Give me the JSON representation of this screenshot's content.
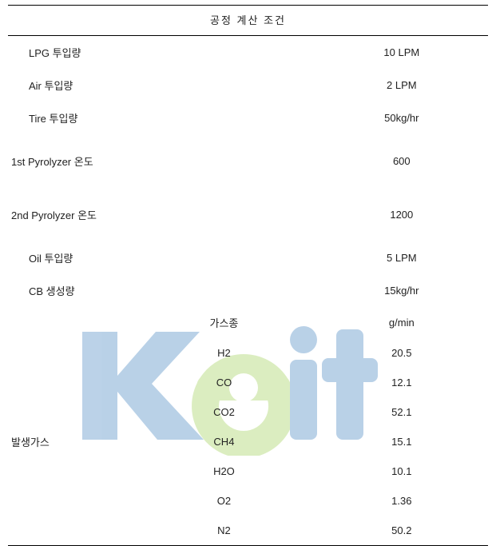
{
  "title": "공정   계산 조건",
  "params": [
    {
      "label": "LPG 투입량",
      "value": "10 LPM",
      "lpad": "p-label"
    },
    {
      "label": "Air 투입량",
      "value": "2 LPM",
      "lpad": "p-label"
    },
    {
      "label": "Tire 투입량",
      "value": "50kg/hr",
      "lpad": "p-label"
    },
    {
      "label": "1st Pyrolyzer   온도",
      "value": "600",
      "lpad": "p-label2"
    },
    {
      "label": "2nd Pyrolyzer   온도",
      "value": "1200",
      "lpad": "p-label2"
    },
    {
      "label": "Oil 투입량",
      "value": "5 LPM",
      "lpad": "p-label"
    },
    {
      "label": "CB 생성량",
      "value": "15kg/hr",
      "lpad": "p-label"
    }
  ],
  "gas_section_label": "발생가스",
  "gas_header": {
    "species": "가스종",
    "unit": "g/min"
  },
  "gases": [
    {
      "name": "H2",
      "value": "20.5"
    },
    {
      "name": "CO",
      "value": "12.1"
    },
    {
      "name": "CO2",
      "value": "52.1"
    },
    {
      "name": "CH4",
      "value": "15.1"
    },
    {
      "name": "H2O",
      "value": "10.1"
    },
    {
      "name": "O2",
      "value": "1.36"
    },
    {
      "name": "N2",
      "value": "50.2"
    }
  ],
  "watermark": {
    "color_k": "#2a73b8",
    "color_e": "#93c83d",
    "opacity": 0.32
  }
}
